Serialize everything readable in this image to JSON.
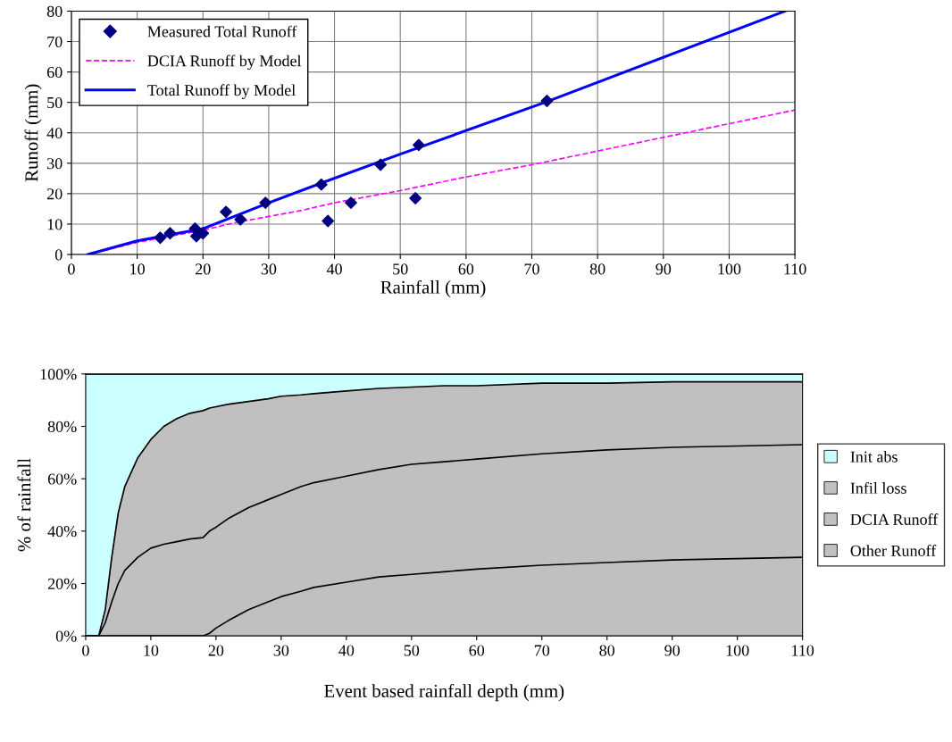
{
  "chart_data": [
    {
      "type": "scatter",
      "xlabel": "Rainfall (mm)",
      "ylabel": "Runoff (mm)",
      "xlim": [
        0,
        110
      ],
      "ylim": [
        0,
        80
      ],
      "xticks": [
        0,
        10,
        20,
        30,
        40,
        50,
        60,
        70,
        80,
        90,
        100,
        110
      ],
      "yticks": [
        0,
        10,
        20,
        30,
        40,
        50,
        60,
        70,
        80
      ],
      "grid": true,
      "legend": "top left",
      "series": [
        {
          "name": "Measured Total Runoff",
          "type": "scatter",
          "marker": "diamond",
          "color": "#000080",
          "x": [
            13.5,
            15,
            18.8,
            19,
            20,
            23.5,
            25.7,
            29.5,
            38,
            39,
            42.5,
            47,
            52.3,
            52.8,
            72.3
          ],
          "values": [
            5.5,
            7,
            8.5,
            6,
            7,
            14,
            11.5,
            17,
            23,
            11,
            17,
            29.5,
            18.5,
            36,
            50.5
          ]
        },
        {
          "name": "DCIA Runoff by Model",
          "type": "line",
          "marker": "none",
          "line_style": "dashed",
          "color": "#ff00ff",
          "x": [
            2.5,
            10,
            20,
            25,
            30,
            35,
            40,
            50,
            60,
            70,
            80,
            90,
            100,
            110
          ],
          "values": [
            0,
            4,
            8,
            10.5,
            12.5,
            14.5,
            17,
            21,
            25.5,
            29.5,
            34,
            38.5,
            43,
            47.5
          ]
        },
        {
          "name": "Total Runoff by Model",
          "type": "line",
          "marker": "none",
          "line_style": "solid",
          "color": "#0000ff",
          "x": [
            2.5,
            10,
            20,
            30,
            38,
            50,
            72,
            108.5
          ],
          "values": [
            0,
            4.5,
            8.5,
            17,
            23.5,
            33,
            50,
            80
          ]
        }
      ]
    },
    {
      "type": "area",
      "stacked": true,
      "xlabel": "Event based rainfall depth (mm)",
      "ylabel": "% of rainfall",
      "xlim": [
        0,
        110
      ],
      "ylim": [
        0,
        100
      ],
      "xticks": [
        0,
        10,
        20,
        30,
        40,
        50,
        60,
        70,
        80,
        90,
        100,
        110
      ],
      "yticks": [
        {
          "value": 0,
          "label": "0%"
        },
        {
          "value": 20,
          "label": "20%"
        },
        {
          "value": 40,
          "label": "40%"
        },
        {
          "value": 60,
          "label": "60%"
        },
        {
          "value": 80,
          "label": "80%"
        },
        {
          "value": 100,
          "label": "100%"
        }
      ],
      "grid": false,
      "legend": "right",
      "x": [
        0,
        2,
        3,
        4,
        5,
        6,
        8,
        10,
        12,
        14,
        16,
        18,
        19,
        20,
        22,
        25,
        28,
        30,
        33,
        35,
        40,
        45,
        50,
        55,
        60,
        70,
        80,
        90,
        100,
        110
      ],
      "series": [
        {
          "name": "Other Runoff",
          "color": "#c0c0c0",
          "values": [
            0,
            0,
            0,
            0,
            0,
            0,
            0,
            0,
            0,
            0,
            0,
            0,
            1,
            3,
            6,
            10,
            13,
            15,
            17,
            18.5,
            20.5,
            22.5,
            23.5,
            24.5,
            25.5,
            27,
            28,
            29,
            29.5,
            30
          ]
        },
        {
          "name": "DCIA Runoff",
          "color": "#c0c0c0",
          "values": [
            0,
            0,
            5,
            13,
            20,
            25,
            30,
            33.5,
            35,
            36,
            37,
            37.5,
            39,
            38.5,
            39,
            39,
            39,
            39,
            40,
            40,
            40.5,
            41,
            42,
            42,
            42,
            42.5,
            43,
            43,
            43,
            43
          ]
        },
        {
          "name": "Infil loss",
          "color": "#c0c0c0",
          "values": [
            0,
            0,
            5,
            17,
            27,
            32,
            38,
            41.5,
            45,
            47,
            48,
            48.5,
            47,
            46,
            43.5,
            40.5,
            38.5,
            37.5,
            35,
            34,
            32.5,
            31,
            29.5,
            29,
            28,
            27,
            25.5,
            25,
            24.5,
            24
          ]
        },
        {
          "name": "Init abs",
          "color": "#ccffff",
          "values": [
            100,
            100,
            90,
            70,
            53,
            43,
            32,
            25,
            20,
            17,
            15,
            14,
            13,
            12.5,
            11.5,
            10.5,
            9.5,
            8.5,
            8,
            7.5,
            6.5,
            5.5,
            5,
            4.5,
            4.5,
            3.5,
            3.5,
            3,
            3,
            3
          ]
        }
      ]
    }
  ]
}
